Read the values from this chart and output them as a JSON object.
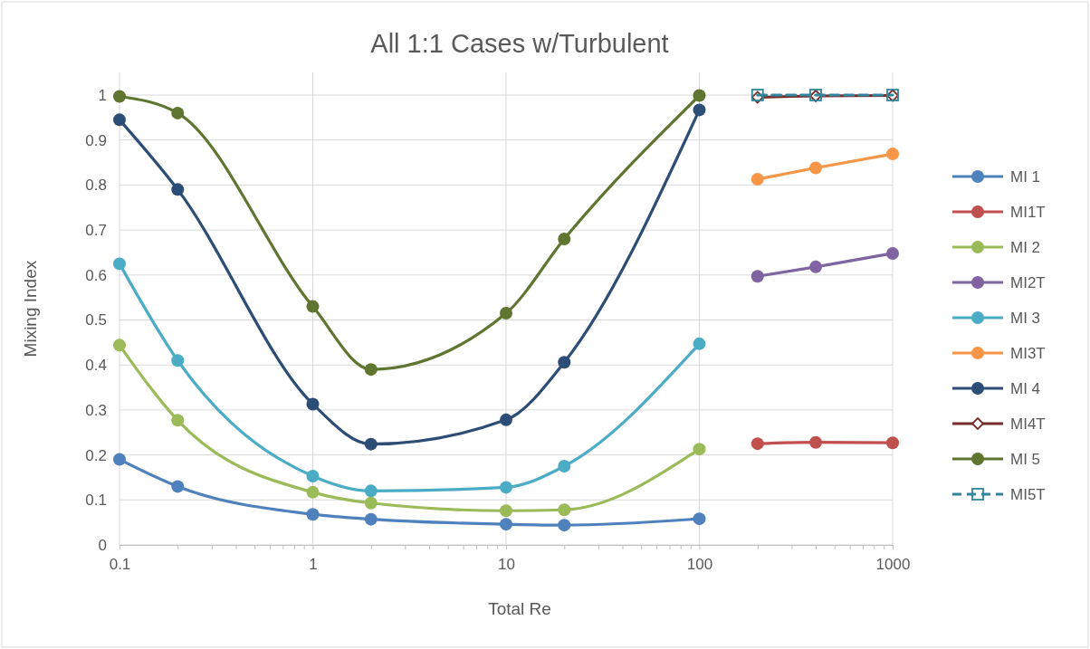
{
  "chart_data": {
    "type": "line",
    "title": "All 1:1 Cases w/Turbulent",
    "xlabel": "Total Re",
    "ylabel": "Mixing Index",
    "log": "x",
    "grid": true,
    "legend": "right",
    "marker": "circle",
    "line_style": "solid",
    "xlim": [
      0.1,
      1000
    ],
    "ylim": [
      0,
      1.05
    ],
    "xticks": [
      0.1,
      {
        "value": 0.2,
        "label": null
      },
      {
        "value": 0.3,
        "label": null
      },
      {
        "value": 0.4,
        "label": null
      },
      {
        "value": 0.5,
        "label": null
      },
      {
        "value": 0.6,
        "label": null
      },
      {
        "value": 0.7,
        "label": null
      },
      {
        "value": 0.8,
        "label": null
      },
      {
        "value": 0.9,
        "label": null
      },
      1,
      {
        "value": 2,
        "label": null
      },
      {
        "value": 3,
        "label": null
      },
      {
        "value": 4,
        "label": null
      },
      {
        "value": 5,
        "label": null
      },
      {
        "value": 6,
        "label": null
      },
      {
        "value": 7,
        "label": null
      },
      {
        "value": 8,
        "label": null
      },
      {
        "value": 9,
        "label": null
      },
      10,
      {
        "value": 20,
        "label": null
      },
      {
        "value": 30,
        "label": null
      },
      {
        "value": 40,
        "label": null
      },
      {
        "value": 50,
        "label": null
      },
      {
        "value": 60,
        "label": null
      },
      {
        "value": 70,
        "label": null
      },
      {
        "value": 80,
        "label": null
      },
      {
        "value": 90,
        "label": null
      },
      100,
      {
        "value": 200,
        "label": null
      },
      {
        "value": 300,
        "label": null
      },
      {
        "value": 400,
        "label": null
      },
      {
        "value": 500,
        "label": null
      },
      {
        "value": 600,
        "label": null
      },
      {
        "value": 700,
        "label": null
      },
      {
        "value": 800,
        "label": null
      },
      {
        "value": 900,
        "label": null
      },
      1000
    ],
    "yticks": [
      0,
      0.1,
      0.2,
      0.3,
      0.4,
      0.5,
      0.6,
      0.7,
      0.8,
      0.9,
      1
    ],
    "series": [
      {
        "name": "MI 1",
        "color": "#4f81bd",
        "x": [
          0.1,
          0.2,
          1,
          2,
          10,
          20,
          100
        ],
        "values": [
          0.19,
          0.13,
          0.068,
          0.057,
          0.046,
          0.044,
          0.058
        ]
      },
      {
        "name": "MI1T",
        "color": "#c0504d",
        "x": [
          200,
          400,
          1000
        ],
        "values": [
          0.225,
          0.228,
          0.227
        ]
      },
      {
        "name": "MI 2",
        "color": "#9bbb59",
        "x": [
          0.1,
          0.2,
          1,
          2,
          10,
          20,
          100
        ],
        "values": [
          0.444,
          0.277,
          0.117,
          0.093,
          0.076,
          0.078,
          0.213
        ]
      },
      {
        "name": "MI2T",
        "color": "#8064a2",
        "x": [
          200,
          400,
          1000
        ],
        "values": [
          0.597,
          0.618,
          0.648
        ]
      },
      {
        "name": "MI 3",
        "color": "#4bacc6",
        "x": [
          0.1,
          0.2,
          1,
          2,
          10,
          20,
          100
        ],
        "values": [
          0.625,
          0.41,
          0.153,
          0.12,
          0.128,
          0.175,
          0.447
        ]
      },
      {
        "name": "MI3T",
        "color": "#f79646",
        "x": [
          200,
          400,
          1000
        ],
        "values": [
          0.813,
          0.838,
          0.869
        ]
      },
      {
        "name": "MI 4",
        "color": "#2c4d75",
        "x": [
          0.1,
          0.2,
          1,
          2,
          10,
          20,
          100
        ],
        "values": [
          0.945,
          0.79,
          0.313,
          0.224,
          0.278,
          0.406,
          0.967
        ]
      },
      {
        "name": "MI4T",
        "color": "#772c2a",
        "marker": "diamond",
        "x": [
          200,
          400,
          1000
        ],
        "values": [
          0.995,
          0.998,
          0.999
        ]
      },
      {
        "name": "MI 5",
        "color": "#5f7530",
        "x": [
          0.1,
          0.2,
          1,
          2,
          10,
          20,
          100
        ],
        "values": [
          0.997,
          0.96,
          0.53,
          0.39,
          0.515,
          0.68,
          0.999
        ]
      },
      {
        "name": "MI5T",
        "color": "#31859c",
        "marker": "square",
        "line_style": "dashed",
        "x": [
          200,
          400,
          1000
        ],
        "values": [
          1,
          1,
          1
        ]
      }
    ]
  }
}
